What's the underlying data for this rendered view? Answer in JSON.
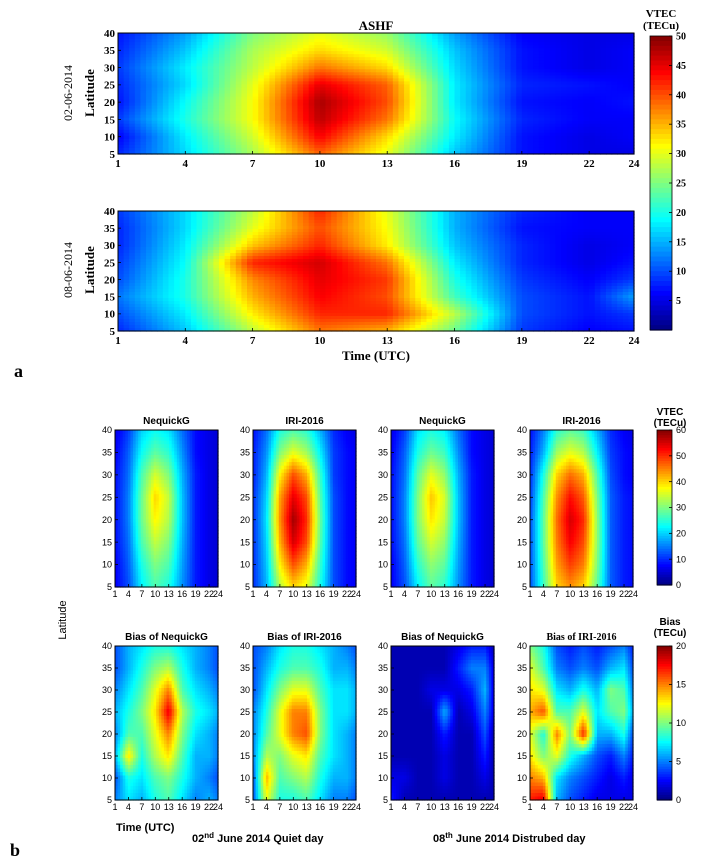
{
  "colors": {
    "jet": [
      "#00007f",
      "#0000ff",
      "#007fff",
      "#00ffff",
      "#7fff7f",
      "#ffff00",
      "#ff7f00",
      "#ff0000",
      "#7f0000"
    ]
  },
  "panel_a": {
    "label": "a",
    "title": "ASHF",
    "xlabel": "Time (UTC)",
    "ylabel": "Latitude",
    "xticks": [
      "1",
      "4",
      "7",
      "10",
      "13",
      "16",
      "19",
      "22",
      "24"
    ],
    "yticks": [
      "5",
      "10",
      "15",
      "20",
      "25",
      "30",
      "35",
      "40"
    ],
    "colorbar": {
      "title_line1": "VTEC",
      "title_line2": "(TECu)",
      "ticks": [
        "5",
        "10",
        "15",
        "20",
        "25",
        "30",
        "35",
        "40",
        "45",
        "50"
      ]
    },
    "maps": [
      {
        "date": "02-06-2014"
      },
      {
        "date": "08-06-2014"
      }
    ]
  },
  "panel_b": {
    "label": "b",
    "ylabel": "Latitude",
    "xlabel": "Time (UTC)",
    "xticks": [
      "1",
      "4",
      "7",
      "10",
      "13",
      "16",
      "19",
      "22",
      "24"
    ],
    "yticks": [
      "5",
      "10",
      "15",
      "20",
      "25",
      "30",
      "35",
      "40"
    ],
    "top_titles": [
      "NequickG",
      "IRI-2016",
      "NequickG",
      "IRI-2016"
    ],
    "bottom_titles": [
      "Bias of NequickG",
      "Bias of IRI-2016",
      "Bias of NequickG",
      "Bias of IRI-2016"
    ],
    "colorbar_top": {
      "title_line1": "VTEC",
      "title_line2": "(TECu)",
      "ticks": [
        "0",
        "10",
        "20",
        "30",
        "40",
        "50",
        "60"
      ]
    },
    "colorbar_bottom": {
      "title_line1": "Bias",
      "title_line2": "(TECu)",
      "ticks": [
        "0",
        "5",
        "10",
        "15",
        "20"
      ]
    },
    "caption_quiet_pre": "02",
    "caption_quiet_sup": "nd",
    "caption_quiet_post": " June  2014 Quiet day",
    "caption_dist_pre": "08",
    "caption_dist_sup": "th",
    "caption_dist_post": " June 2014 Distrubed day"
  },
  "chart_data": [
    {
      "type": "heatmap",
      "title": "ASHF",
      "series_name": "02-06-2014",
      "xlabel": "Time (UTC)",
      "ylabel": "Latitude",
      "xlim": [
        1,
        24
      ],
      "ylim": [
        5,
        40
      ],
      "clim": [
        0,
        50
      ],
      "x": [
        1,
        4,
        7,
        10,
        13,
        16,
        19,
        22,
        24
      ],
      "y": [
        5,
        10,
        15,
        20,
        25,
        30,
        35,
        40
      ],
      "z": [
        [
          8,
          17,
          27,
          39,
          30,
          16,
          7,
          5,
          5
        ],
        [
          6,
          18,
          29,
          44,
          33,
          18,
          7,
          5,
          6
        ],
        [
          9,
          20,
          31,
          47,
          38,
          19,
          8,
          6,
          6
        ],
        [
          7,
          19,
          31,
          48,
          40,
          18,
          7,
          6,
          7
        ],
        [
          8,
          17,
          30,
          45,
          39,
          18,
          8,
          7,
          6
        ],
        [
          9,
          18,
          28,
          38,
          33,
          17,
          7,
          5,
          6
        ],
        [
          8,
          16,
          27,
          33,
          29,
          16,
          7,
          5,
          6
        ],
        [
          7,
          14,
          25,
          30,
          26,
          14,
          6,
          5,
          5
        ]
      ]
    },
    {
      "type": "heatmap",
      "title": "",
      "series_name": "08-06-2014",
      "xlabel": "Time (UTC)",
      "ylabel": "Latitude",
      "xlim": [
        1,
        24
      ],
      "ylim": [
        5,
        40
      ],
      "clim": [
        0,
        50
      ],
      "x": [
        1,
        4,
        7,
        10,
        13,
        16,
        19,
        22,
        24
      ],
      "y": [
        5,
        10,
        15,
        20,
        25,
        30,
        35,
        40
      ],
      "z": [
        [
          8,
          16,
          28,
          38,
          35,
          24,
          9,
          6,
          7
        ],
        [
          10,
          18,
          32,
          42,
          42,
          28,
          10,
          7,
          9
        ],
        [
          12,
          20,
          35,
          44,
          40,
          22,
          10,
          7,
          14
        ],
        [
          10,
          20,
          37,
          45,
          41,
          20,
          9,
          6,
          9
        ],
        [
          9,
          19,
          42,
          46,
          38,
          18,
          8,
          5,
          7
        ],
        [
          8,
          18,
          34,
          42,
          32,
          16,
          8,
          5,
          6
        ],
        [
          8,
          17,
          30,
          40,
          31,
          15,
          7,
          6,
          6
        ],
        [
          9,
          17,
          28,
          42,
          30,
          15,
          8,
          6,
          6
        ]
      ]
    },
    {
      "type": "heatmap",
      "title": "NequickG",
      "series_name": "02 June 2014 Quiet day",
      "xlim": [
        1,
        24
      ],
      "ylim": [
        5,
        40
      ],
      "clim": [
        0,
        60
      ],
      "x": [
        1,
        4,
        7,
        10,
        13,
        16,
        19,
        22,
        24
      ],
      "y": [
        5,
        10,
        15,
        20,
        25,
        30,
        35,
        40
      ],
      "z": [
        [
          7,
          12,
          22,
          27,
          24,
          16,
          9,
          6,
          5
        ],
        [
          7,
          13,
          24,
          30,
          27,
          17,
          9,
          6,
          5
        ],
        [
          8,
          14,
          27,
          34,
          30,
          18,
          9,
          6,
          5
        ],
        [
          8,
          15,
          29,
          38,
          33,
          19,
          9,
          6,
          5
        ],
        [
          8,
          15,
          29,
          40,
          34,
          19,
          9,
          6,
          5
        ],
        [
          8,
          14,
          27,
          35,
          30,
          18,
          9,
          6,
          5
        ],
        [
          7,
          13,
          23,
          28,
          25,
          16,
          8,
          6,
          5
        ],
        [
          6,
          11,
          20,
          23,
          21,
          14,
          8,
          6,
          5
        ]
      ]
    },
    {
      "type": "heatmap",
      "title": "IRI-2016",
      "series_name": "02 June 2014 Quiet day",
      "xlim": [
        1,
        24
      ],
      "ylim": [
        5,
        40
      ],
      "clim": [
        0,
        60
      ],
      "x": [
        1,
        4,
        7,
        10,
        13,
        16,
        19,
        22,
        24
      ],
      "y": [
        5,
        10,
        15,
        20,
        25,
        30,
        35,
        40
      ],
      "z": [
        [
          10,
          18,
          33,
          40,
          36,
          24,
          12,
          8,
          7
        ],
        [
          10,
          19,
          38,
          48,
          42,
          26,
          12,
          8,
          7
        ],
        [
          10,
          20,
          42,
          55,
          48,
          28,
          12,
          8,
          7
        ],
        [
          10,
          21,
          44,
          58,
          50,
          29,
          12,
          8,
          7
        ],
        [
          10,
          20,
          43,
          54,
          48,
          28,
          12,
          8,
          7
        ],
        [
          9,
          18,
          38,
          48,
          42,
          26,
          11,
          8,
          7
        ],
        [
          9,
          16,
          30,
          36,
          32,
          22,
          11,
          8,
          7
        ],
        [
          8,
          14,
          24,
          27,
          25,
          18,
          10,
          7,
          6
        ]
      ]
    },
    {
      "type": "heatmap",
      "title": "NequickG",
      "series_name": "08 June 2014 Distrubed day",
      "xlim": [
        1,
        24
      ],
      "ylim": [
        5,
        40
      ],
      "clim": [
        0,
        60
      ],
      "x": [
        1,
        4,
        7,
        10,
        13,
        16,
        19,
        22,
        24
      ],
      "y": [
        5,
        10,
        15,
        20,
        25,
        30,
        35,
        40
      ],
      "z": [
        [
          7,
          12,
          22,
          28,
          25,
          16,
          9,
          6,
          5
        ],
        [
          7,
          13,
          25,
          31,
          28,
          17,
          9,
          6,
          5
        ],
        [
          8,
          14,
          28,
          35,
          31,
          18,
          9,
          6,
          5
        ],
        [
          8,
          15,
          30,
          39,
          34,
          19,
          9,
          6,
          5
        ],
        [
          8,
          15,
          30,
          41,
          35,
          19,
          9,
          6,
          5
        ],
        [
          8,
          14,
          28,
          36,
          31,
          18,
          9,
          6,
          5
        ],
        [
          7,
          13,
          24,
          29,
          26,
          16,
          8,
          6,
          5
        ],
        [
          6,
          11,
          21,
          24,
          22,
          14,
          8,
          6,
          5
        ]
      ]
    },
    {
      "type": "heatmap",
      "title": "IRI-2016",
      "series_name": "08 June 2014 Distrubed day",
      "xlim": [
        1,
        24
      ],
      "ylim": [
        5,
        40
      ],
      "clim": [
        0,
        60
      ],
      "x": [
        1,
        4,
        7,
        10,
        13,
        16,
        19,
        22,
        24
      ],
      "y": [
        5,
        10,
        15,
        20,
        25,
        30,
        35,
        40
      ],
      "z": [
        [
          12,
          26,
          40,
          44,
          40,
          28,
          13,
          9,
          8
        ],
        [
          12,
          27,
          43,
          49,
          45,
          30,
          13,
          9,
          8
        ],
        [
          12,
          28,
          45,
          53,
          48,
          31,
          13,
          9,
          8
        ],
        [
          12,
          28,
          46,
          55,
          50,
          31,
          13,
          9,
          8
        ],
        [
          11,
          27,
          44,
          52,
          47,
          30,
          13,
          9,
          8
        ],
        [
          10,
          24,
          40,
          46,
          42,
          27,
          12,
          8,
          7
        ],
        [
          9,
          18,
          32,
          36,
          33,
          22,
          11,
          8,
          7
        ],
        [
          8,
          15,
          25,
          28,
          26,
          18,
          10,
          7,
          6
        ]
      ]
    },
    {
      "type": "heatmap",
      "title": "Bias of NequickG",
      "series_name": "02 June 2014 Quiet day",
      "xlim": [
        1,
        24
      ],
      "ylim": [
        5,
        40
      ],
      "clim": [
        0,
        20
      ],
      "x": [
        1,
        4,
        7,
        10,
        13,
        16,
        19,
        22,
        24
      ],
      "y": [
        5,
        10,
        15,
        20,
        25,
        30,
        35,
        40
      ],
      "z": [
        [
          5,
          7,
          6,
          8,
          9,
          7,
          5,
          6,
          5
        ],
        [
          4,
          8,
          7,
          9,
          10,
          8,
          6,
          5,
          4
        ],
        [
          6,
          13,
          8,
          11,
          13,
          9,
          6,
          6,
          5
        ],
        [
          5,
          9,
          9,
          12,
          15,
          10,
          7,
          6,
          5
        ],
        [
          6,
          8,
          10,
          13,
          18,
          11,
          8,
          7,
          6
        ],
        [
          5,
          7,
          9,
          12,
          15,
          9,
          7,
          6,
          5
        ],
        [
          4,
          6,
          8,
          10,
          11,
          8,
          6,
          5,
          4
        ],
        [
          4,
          6,
          7,
          8,
          8,
          7,
          6,
          5,
          4
        ]
      ]
    },
    {
      "type": "heatmap",
      "title": "Bias of IRI-2016",
      "series_name": "02 June 2014 Quiet day",
      "xlim": [
        1,
        24
      ],
      "ylim": [
        5,
        40
      ],
      "clim": [
        0,
        20
      ],
      "x": [
        1,
        4,
        7,
        10,
        13,
        16,
        19,
        22,
        24
      ],
      "y": [
        5,
        10,
        15,
        20,
        25,
        30,
        35,
        40
      ],
      "z": [
        [
          4,
          12,
          8,
          8,
          9,
          7,
          5,
          5,
          4
        ],
        [
          4,
          14,
          9,
          10,
          11,
          8,
          6,
          6,
          5
        ],
        [
          5,
          11,
          10,
          12,
          13,
          9,
          7,
          6,
          5
        ],
        [
          5,
          9,
          12,
          15,
          16,
          10,
          7,
          6,
          5
        ],
        [
          5,
          8,
          12,
          15,
          15,
          10,
          7,
          7,
          6
        ],
        [
          4,
          7,
          10,
          12,
          12,
          9,
          7,
          7,
          6
        ],
        [
          4,
          6,
          8,
          9,
          9,
          8,
          6,
          6,
          5
        ],
        [
          4,
          5,
          7,
          8,
          8,
          7,
          6,
          5,
          4
        ]
      ]
    },
    {
      "type": "heatmap",
      "title": "Bias of NequickG",
      "series_name": "08 June 2014 Distrubed day",
      "xlim": [
        1,
        24
      ],
      "ylim": [
        5,
        40
      ],
      "clim": [
        0,
        20
      ],
      "x": [
        1,
        4,
        7,
        10,
        13,
        16,
        19,
        22,
        24
      ],
      "y": [
        5,
        10,
        15,
        20,
        25,
        30,
        35,
        40
      ],
      "z": [
        [
          3,
          1,
          1,
          1,
          1,
          1,
          1,
          1,
          1
        ],
        [
          2,
          2,
          1,
          1,
          2,
          1,
          1,
          2,
          1
        ],
        [
          1,
          1,
          1,
          1,
          2,
          1,
          1,
          3,
          1
        ],
        [
          1,
          1,
          1,
          1,
          3,
          1,
          1,
          4,
          1
        ],
        [
          1,
          1,
          1,
          1,
          6,
          1,
          2,
          5,
          2
        ],
        [
          1,
          1,
          1,
          2,
          2,
          2,
          3,
          6,
          2
        ],
        [
          1,
          1,
          1,
          1,
          1,
          3,
          5,
          5,
          2
        ],
        [
          1,
          1,
          1,
          1,
          1,
          2,
          3,
          3,
          1
        ]
      ]
    },
    {
      "type": "heatmap",
      "title": "Bias of IRI-2016",
      "series_name": "08 June 2014 Distrubed day",
      "xlim": [
        1,
        24
      ],
      "ylim": [
        5,
        40
      ],
      "clim": [
        0,
        20
      ],
      "x": [
        1,
        4,
        7,
        10,
        13,
        16,
        19,
        22,
        24
      ],
      "y": [
        5,
        10,
        15,
        20,
        25,
        30,
        35,
        40
      ],
      "z": [
        [
          17,
          18,
          6,
          4,
          3,
          2,
          2,
          2,
          2
        ],
        [
          15,
          14,
          7,
          5,
          4,
          3,
          2,
          3,
          2
        ],
        [
          13,
          10,
          12,
          8,
          6,
          4,
          3,
          5,
          3
        ],
        [
          12,
          8,
          15,
          10,
          17,
          6,
          6,
          8,
          4
        ],
        [
          14,
          16,
          9,
          9,
          12,
          7,
          9,
          10,
          6
        ],
        [
          13,
          12,
          7,
          6,
          8,
          6,
          10,
          9,
          5
        ],
        [
          12,
          9,
          5,
          4,
          5,
          4,
          6,
          7,
          4
        ],
        [
          10,
          8,
          4,
          3,
          4,
          3,
          4,
          5,
          3
        ]
      ]
    }
  ]
}
